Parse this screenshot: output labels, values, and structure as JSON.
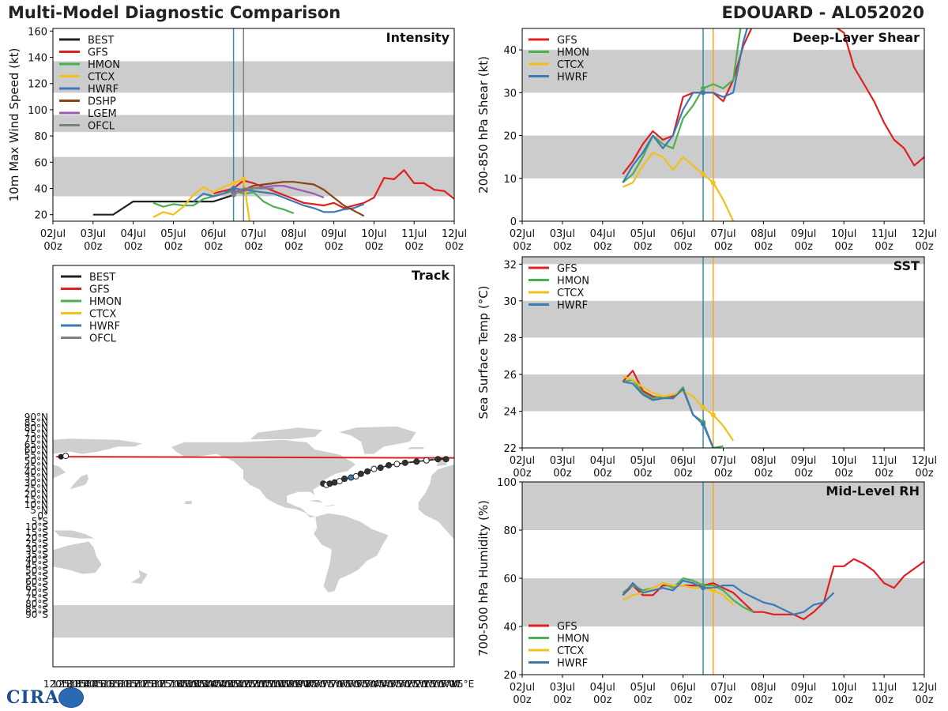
{
  "header": {
    "title": "Multi-Model Diagnostic Comparison",
    "storm": "EDOUARD - AL052020"
  },
  "logo": {
    "text": "CIRA"
  },
  "colors": {
    "BEST": "#222222",
    "GFS": "#e02020",
    "HMON": "#4caf50",
    "CTCX": "#f2c016",
    "HWRF": "#3c7ab5",
    "DSHP": "#8b4513",
    "LGEM": "#9b59b6",
    "OFCL": "#808080",
    "band": "#cccccc",
    "vline_now": "#3b8ea5",
    "vline_ofcl": "#f5a623"
  },
  "time_axis": {
    "ticks": [
      0,
      1,
      2,
      3,
      4,
      5,
      6,
      7,
      8,
      9,
      10
    ],
    "labels": [
      "02Jul\n00z",
      "03Jul\n00z",
      "04Jul\n00z",
      "05Jul\n00z",
      "06Jul\n00z",
      "07Jul\n00z",
      "08Jul\n00z",
      "09Jul\n00z",
      "10Jul\n00z",
      "11Jul\n00z",
      "12Jul\n00z"
    ]
  },
  "chart_data": [
    {
      "id": "intensity",
      "type": "line",
      "title": "Intensity",
      "ylabel": "10m Max Wind Speed (kt)",
      "xlim": [
        0,
        10
      ],
      "ylim": [
        15,
        162
      ],
      "yticks": [
        20,
        40,
        60,
        80,
        100,
        120,
        140,
        160
      ],
      "bands": [
        [
          34,
          64
        ],
        [
          83,
          96
        ],
        [
          113,
          137
        ]
      ],
      "vlines": [
        {
          "x": 4.5,
          "color": "vline_now"
        },
        {
          "x": 4.75,
          "color": "OFCL"
        }
      ],
      "legend": [
        "BEST",
        "GFS",
        "HMON",
        "CTCX",
        "HWRF",
        "DSHP",
        "LGEM",
        "OFCL"
      ],
      "series": [
        {
          "name": "BEST",
          "x": [
            1,
            1.5,
            2,
            2.5,
            3,
            3.5,
            4,
            4.5
          ],
          "y": [
            20,
            20,
            30,
            30,
            30,
            30,
            30,
            35
          ]
        },
        {
          "name": "GFS",
          "x": [
            4,
            4.25,
            4.5,
            4.75,
            5,
            5.25,
            5.5,
            5.75,
            6,
            6.25,
            6.5,
            6.75,
            7,
            7.25,
            7.5,
            7.75,
            8,
            8.25,
            8.5,
            8.75,
            9,
            9.25,
            9.5,
            9.75,
            10
          ],
          "y": [
            36,
            38,
            40,
            46,
            44,
            41,
            38,
            35,
            32,
            29,
            28,
            27,
            29,
            25,
            27,
            29,
            33,
            48,
            47,
            54,
            44,
            44,
            39,
            38,
            32
          ]
        },
        {
          "name": "HMON",
          "x": [
            2.5,
            2.75,
            3,
            3.25,
            3.5,
            3.75,
            4,
            4.25,
            4.5,
            4.75,
            5,
            5.25,
            5.5,
            5.75,
            6
          ],
          "y": [
            29,
            26,
            28,
            27,
            27,
            32,
            34,
            36,
            38,
            36,
            37,
            30,
            26,
            24,
            21
          ]
        },
        {
          "name": "CTCX",
          "x": [
            2.5,
            2.75,
            3,
            3.25,
            3.5,
            3.75,
            4,
            4.25,
            4.5,
            4.75,
            4.9
          ],
          "y": [
            18,
            22,
            20,
            26,
            35,
            41,
            37,
            41,
            44,
            47,
            15
          ]
        },
        {
          "name": "HWRF",
          "x": [
            3.5,
            3.75,
            4,
            4.25,
            4.5,
            4.75,
            5,
            5.25,
            5.5,
            5.75,
            6,
            6.25,
            6.5,
            6.75,
            7,
            7.25,
            7.5,
            7.75
          ],
          "y": [
            30,
            36,
            34,
            36,
            40,
            39,
            38,
            37,
            36,
            33,
            30,
            27,
            25,
            22,
            22,
            24,
            25,
            28
          ]
        },
        {
          "name": "DSHP",
          "x": [
            4.5,
            4.75,
            5,
            5.25,
            5.5,
            5.75,
            6,
            6.25,
            6.5,
            6.75,
            7,
            7.25,
            7.5,
            7.75
          ],
          "y": [
            37,
            39,
            42,
            43,
            44,
            45,
            45,
            44,
            43,
            39,
            33,
            27,
            23,
            19
          ]
        },
        {
          "name": "LGEM",
          "x": [
            4.5,
            4.75,
            5,
            5.25,
            5.5,
            5.75,
            6,
            6.25,
            6.5,
            6.75
          ],
          "y": [
            37,
            38,
            40,
            41,
            42,
            42,
            40,
            38,
            36,
            33
          ]
        },
        {
          "name": "OFCL",
          "x": [
            4.5,
            4.75,
            5,
            5.25,
            5.5
          ],
          "y": [
            35,
            40,
            40,
            40,
            40
          ]
        }
      ]
    },
    {
      "id": "shear",
      "type": "line",
      "title": "Deep-Layer Shear",
      "ylabel": "200-850 hPa Shear (kt)",
      "xlim": [
        0,
        10
      ],
      "ylim": [
        0,
        45
      ],
      "yticks": [
        0,
        10,
        20,
        30,
        40
      ],
      "bands": [
        [
          10,
          20
        ],
        [
          30,
          40
        ]
      ],
      "vlines": [
        {
          "x": 4.5,
          "color": "vline_now"
        },
        {
          "x": 4.75,
          "color": "vline_ofcl"
        }
      ],
      "legend": [
        "GFS",
        "HMON",
        "CTCX",
        "HWRF"
      ],
      "series": [
        {
          "name": "GFS",
          "x": [
            2.5,
            2.75,
            3,
            3.25,
            3.5,
            3.75,
            4,
            4.25,
            4.5,
            4.75,
            5,
            5.25,
            5.5,
            5.75,
            6,
            6.25,
            8,
            8.25,
            8.5,
            8.75,
            9,
            9.25,
            9.5,
            9.75,
            10
          ],
          "y": [
            11,
            14,
            18,
            21,
            19,
            20,
            29,
            30,
            30,
            30,
            28,
            33,
            41,
            46,
            51,
            55,
            44,
            36,
            32,
            28,
            23,
            19,
            17,
            13,
            15
          ]
        },
        {
          "name": "HMON",
          "x": [
            2.5,
            2.75,
            3,
            3.25,
            3.5,
            3.75,
            4,
            4.25,
            4.5,
            4.75,
            5,
            5.25,
            5.5
          ],
          "y": [
            9,
            11,
            15,
            20,
            18,
            17,
            24,
            27,
            31,
            32,
            31,
            33,
            50
          ]
        },
        {
          "name": "CTCX",
          "x": [
            2.5,
            2.75,
            3,
            3.25,
            3.5,
            3.75,
            4,
            4.25,
            4.5,
            4.75,
            5,
            5.25
          ],
          "y": [
            8,
            9,
            13,
            16,
            15,
            12,
            15,
            13,
            11,
            9,
            5,
            0
          ]
        },
        {
          "name": "HWRF",
          "x": [
            2.5,
            2.75,
            3,
            3.25,
            3.5,
            3.75,
            4,
            4.25,
            4.5,
            4.75,
            5,
            5.25,
            5.5,
            5.75
          ],
          "y": [
            9,
            13,
            16,
            20,
            17,
            20,
            26,
            30,
            30,
            30,
            29,
            30,
            42,
            50
          ]
        }
      ]
    },
    {
      "id": "sst",
      "type": "line",
      "title": "SST",
      "ylabel": "Sea Surface Temp (°C)",
      "xlim": [
        0,
        10
      ],
      "ylim": [
        22,
        32.4
      ],
      "yticks": [
        22,
        24,
        26,
        28,
        30,
        32
      ],
      "bands": [
        [
          24,
          26
        ],
        [
          28,
          30
        ],
        [
          32,
          32.4
        ]
      ],
      "vlines": [
        {
          "x": 4.5,
          "color": "vline_now"
        },
        {
          "x": 4.75,
          "color": "vline_ofcl"
        }
      ],
      "legend": [
        "GFS",
        "HMON",
        "CTCX",
        "HWRF"
      ],
      "series": [
        {
          "name": "GFS",
          "x": [
            2.5,
            2.75,
            3,
            3.25,
            3.5,
            3.75,
            4,
            4.25,
            4.5,
            4.75
          ],
          "y": [
            25.6,
            26.2,
            25.1,
            24.8,
            24.7,
            24.8,
            25.2,
            23.8,
            23.4,
            22.0
          ]
        },
        {
          "name": "HMON",
          "x": [
            2.5,
            2.75,
            3,
            3.25,
            3.5,
            3.75,
            4,
            4.25,
            4.5,
            4.75,
            5
          ],
          "y": [
            25.6,
            25.7,
            25.0,
            24.7,
            24.8,
            24.7,
            25.3,
            23.8,
            23.4,
            22.0,
            22.1
          ]
        },
        {
          "name": "CTCX",
          "x": [
            2.5,
            2.75,
            3,
            3.25,
            3.5,
            3.75,
            4,
            4.25,
            4.5,
            4.75,
            5,
            5.25
          ],
          "y": [
            25.9,
            25.7,
            25.3,
            25.0,
            24.8,
            24.9,
            25.1,
            24.8,
            24.2,
            23.8,
            23.2,
            22.4
          ]
        },
        {
          "name": "HWRF",
          "x": [
            2.5,
            2.75,
            3,
            3.25,
            3.5,
            3.75,
            4,
            4.25,
            4.5,
            4.75
          ],
          "y": [
            25.6,
            25.5,
            24.9,
            24.6,
            24.7,
            24.7,
            25.2,
            23.8,
            23.3,
            22.0
          ]
        }
      ]
    },
    {
      "id": "rh",
      "type": "line",
      "title": "Mid-Level RH",
      "ylabel": "700-500 hPa Humidity (%)",
      "xlim": [
        0,
        10
      ],
      "ylim": [
        20,
        100
      ],
      "yticks": [
        20,
        40,
        60,
        80,
        100
      ],
      "bands": [
        [
          40,
          60
        ],
        [
          80,
          100
        ]
      ],
      "vlines": [
        {
          "x": 4.5,
          "color": "vline_now"
        },
        {
          "x": 4.75,
          "color": "vline_ofcl"
        }
      ],
      "legend": [
        "GFS",
        "HMON",
        "CTCX",
        "HWRF"
      ],
      "series": [
        {
          "name": "GFS",
          "x": [
            2.5,
            2.75,
            3,
            3.25,
            3.5,
            3.75,
            4,
            4.25,
            4.5,
            4.75,
            5,
            5.25,
            5.5,
            5.75,
            6,
            6.25,
            6.5,
            6.75,
            7,
            7.25,
            7.5,
            7.75,
            8,
            8.25,
            8.5,
            8.75,
            9,
            9.25,
            9.5,
            9.75,
            10
          ],
          "y": [
            53,
            57,
            53,
            53,
            57,
            57,
            57,
            57,
            57,
            58,
            56,
            54,
            50,
            46,
            46,
            45,
            45,
            45,
            43,
            46,
            50,
            65,
            65,
            68,
            66,
            63,
            58,
            56,
            61,
            64,
            67
          ]
        },
        {
          "name": "HMON",
          "x": [
            2.5,
            2.75,
            3,
            3.25,
            3.5,
            3.75,
            4,
            4.25,
            4.5,
            4.75,
            5,
            5.25,
            5.5,
            5.75
          ],
          "y": [
            54,
            57,
            55,
            56,
            58,
            56,
            60,
            59,
            57,
            57,
            55,
            51,
            48,
            46
          ]
        },
        {
          "name": "CTCX",
          "x": [
            2.5,
            2.75,
            3,
            3.25,
            3.5,
            3.75,
            4,
            4.25,
            4.5,
            4.75,
            5,
            5.25
          ],
          "y": [
            51,
            53,
            54,
            56,
            58,
            57,
            57,
            56,
            56,
            55,
            53,
            49
          ]
        },
        {
          "name": "HWRF",
          "x": [
            2.5,
            2.75,
            3,
            3.25,
            3.5,
            3.75,
            4,
            4.25,
            4.5,
            4.75,
            5,
            5.25,
            5.5,
            5.75,
            6,
            6.25,
            6.5,
            6.75,
            7,
            7.25,
            7.5,
            7.75
          ],
          "y": [
            53,
            58,
            54,
            55,
            56,
            55,
            59,
            58,
            56,
            56,
            57,
            57,
            54,
            52,
            50,
            49,
            47,
            45,
            46,
            49,
            50,
            54
          ]
        }
      ]
    },
    {
      "id": "track",
      "type": "map",
      "title": "Track",
      "legend": [
        "BEST",
        "GFS",
        "HMON",
        "CTCX",
        "HWRF",
        "OFCL"
      ],
      "lat_labels": [
        "90°N",
        "85°N",
        "80°N",
        "75°N",
        "70°N",
        "65°N",
        "60°N",
        "55°N",
        "50°N",
        "45°N",
        "40°N",
        "35°N",
        "30°N",
        "25°N",
        "20°N",
        "15°N",
        "10°N",
        "5°N",
        "0°",
        "5°S",
        "10°S",
        "15°S",
        "20°S",
        "25°S",
        "30°S",
        "35°S",
        "40°S",
        "45°S",
        "50°S",
        "55°S",
        "60°S",
        "65°S",
        "70°S",
        "75°S",
        "80°S",
        "85°S",
        "90°S"
      ],
      "lon_labels": [
        "120°E",
        "125°E",
        "130°E",
        "135°E",
        "140°E",
        "145°E",
        "150°E",
        "155°E",
        "160°E",
        "165°E",
        "170°E",
        "175°E",
        "180°",
        "175°W",
        "170°W",
        "165°W",
        "160°W",
        "155°W",
        "150°W",
        "145°W",
        "140°W",
        "135°W",
        "130°W",
        "125°W",
        "120°W",
        "115°W",
        "110°W",
        "105°W",
        "100°W",
        "95°W",
        "90°W",
        "85°W",
        "80°W",
        "75°W",
        "70°W",
        "65°W",
        "60°W",
        "55°W",
        "50°W",
        "45°W",
        "40°W",
        "35°W",
        "30°W",
        "25°W",
        "20°W",
        "15°W",
        "10°W",
        "5°W",
        "0°",
        "5°E"
      ],
      "gfs_track": {
        "lon": [
          -238,
          5
        ],
        "lat": [
          58,
          57
        ]
      },
      "best_track": {
        "lon": [
          -75,
          -73,
          -71,
          -68,
          -65,
          -62,
          -58,
          -55,
          -52,
          -48,
          -44,
          -40,
          -35,
          -30,
          -25,
          -18,
          -12,
          -5,
          0
        ],
        "lat": [
          36,
          35,
          36,
          37,
          38,
          40,
          41,
          42,
          44,
          46,
          48,
          49,
          51,
          52,
          53,
          54,
          55,
          56,
          56
        ]
      }
    }
  ]
}
